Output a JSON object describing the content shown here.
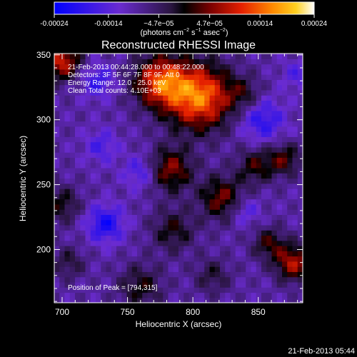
{
  "chart_data": {
    "type": "heatmap",
    "title": "Reconstructed RHESSI Image",
    "xlabel": "Heliocentric X (arcsec)",
    "ylabel": "Heliocentric Y (arcsec)",
    "xlim": [
      694,
      884
    ],
    "ylim": [
      159,
      351
    ],
    "x_ticks": [
      700,
      750,
      800,
      850
    ],
    "y_ticks": [
      200,
      250,
      300,
      350
    ],
    "colorbar": {
      "tick_labels": [
        "-0.00024",
        "-0.00014",
        "−4.7e−05",
        "4.7e−05",
        "0.00014",
        "0.00024"
      ],
      "tick_values": [
        -0.00024,
        -0.00014,
        -4.7e-05,
        4.7e-05,
        0.00014,
        0.00024
      ],
      "units_label_parts": [
        "(photons cm",
        "−2",
        " s",
        "−1",
        " asec",
        "−2",
        ")"
      ],
      "range": [
        -0.00024,
        0.00024
      ]
    },
    "annotations": [
      "21-Feb-2013 00:44:28.000 to 00:48:22.000",
      "Detectors: 3F 5F 6F 7F 8F 9F, Att 0",
      "Energy Range: 12.0 - 25.0 keV",
      "Clean     Total counts: 4.10E+03"
    ],
    "peak_label": "Position of Peak = [794,315]",
    "peak_position": [
      794,
      315
    ],
    "sources": [
      {
        "x": 805,
        "y": 318,
        "amp": 0.00024,
        "sigma": 18
      },
      {
        "x": 775,
        "y": 330,
        "amp": 0.0002,
        "sigma": 14
      },
      {
        "x": 700,
        "y": 345,
        "amp": 0.00018,
        "sigma": 10
      },
      {
        "x": 783,
        "y": 262,
        "amp": 0.00014,
        "sigma": 12
      },
      {
        "x": 822,
        "y": 240,
        "amp": 0.00013,
        "sigma": 12
      },
      {
        "x": 848,
        "y": 265,
        "amp": 0.0001,
        "sigma": 10
      },
      {
        "x": 877,
        "y": 190,
        "amp": 0.00016,
        "sigma": 10
      },
      {
        "x": 858,
        "y": 205,
        "amp": 0.0001,
        "sigma": 9
      },
      {
        "x": 870,
        "y": 270,
        "amp": 0.00011,
        "sigma": 9
      },
      {
        "x": 785,
        "y": 215,
        "amp": 9e-05,
        "sigma": 12
      },
      {
        "x": 700,
        "y": 235,
        "amp": 9e-05,
        "sigma": 10
      },
      {
        "x": 760,
        "y": 172,
        "amp": 9e-05,
        "sigma": 12
      },
      {
        "x": 815,
        "y": 180,
        "amp": 7e-05,
        "sigma": 10
      },
      {
        "x": 705,
        "y": 190,
        "amp": 7e-05,
        "sigma": 9
      },
      {
        "x": 840,
        "y": 320,
        "amp": 7e-05,
        "sigma": 9
      },
      {
        "x": 733,
        "y": 220,
        "amp": -0.00012,
        "sigma": 10
      },
      {
        "x": 727,
        "y": 330,
        "amp": -9e-05,
        "sigma": 9
      },
      {
        "x": 853,
        "y": 300,
        "amp": -0.0001,
        "sigma": 12
      },
      {
        "x": 760,
        "y": 260,
        "amp": -8e-05,
        "sigma": 9
      },
      {
        "x": 840,
        "y": 230,
        "amp": -7e-05,
        "sigma": 8
      },
      {
        "x": 730,
        "y": 280,
        "amp": -7e-05,
        "sigma": 9
      },
      {
        "x": 880,
        "y": 335,
        "amp": -6e-05,
        "sigma": 8
      }
    ]
  },
  "footer": {
    "timestamp": "21-Feb-2013 05:44"
  }
}
